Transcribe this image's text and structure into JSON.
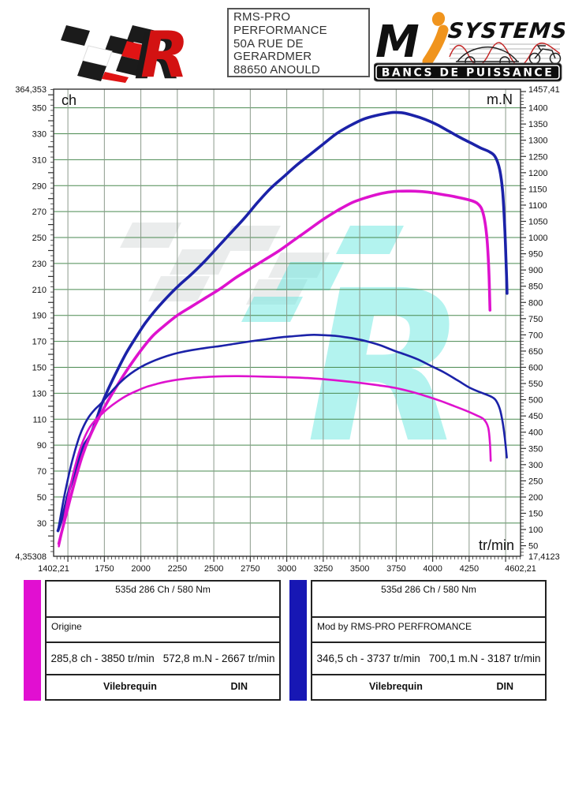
{
  "header": {
    "address_lines": [
      "RMS-PRO",
      "PERFORMANCE",
      "50A RUE DE",
      "GERARDMER",
      "88650 ANOULD"
    ],
    "brand": {
      "m": "M",
      "i": "i",
      "systems": "SYSTEMS",
      "banner": "BANCS DE PUISSANCE"
    }
  },
  "colors": {
    "curve_modified": "#1b22a8",
    "curve_origin": "#de12ce",
    "grid_horizontal": "#4a8a50",
    "grid_vertical": "#8b9a8b",
    "axis": "#333333",
    "legend_origin_bar": "#e10fd1",
    "legend_modified_bar": "#1717b4",
    "logo_red": "#d31212",
    "logo_orange": "#f0941d",
    "watermark_cyan": "#69e8e0",
    "watermark_gray": "#d2d6d6",
    "banner_bg": "#0d0d0d",
    "banner_text": "#ffffff"
  },
  "legends": {
    "origin": {
      "title": "535d 286 Ch / 580 Nm",
      "label": "Origine",
      "power_peak": "285,8 ch - 3850 tr/min",
      "torque_peak": "572,8 m.N - 2667 tr/min",
      "footer_left": "Vilebrequin",
      "footer_right": "DIN",
      "bar_color": "#e10fd1"
    },
    "modified": {
      "title": "535d 286 Ch / 580 Nm",
      "label": "Mod by RMS-PRO PERFROMANCE",
      "power_peak": "346,5 ch - 3737 tr/min",
      "torque_peak": "700,1 m.N - 3187 tr/min",
      "footer_left": "Vilebrequin",
      "footer_right": "DIN",
      "bar_color": "#1717b4"
    }
  },
  "chart_data": {
    "type": "line",
    "x_axis": {
      "label": "tr/min",
      "min": 1402.21,
      "max": 4602.21,
      "grid_min": 1500,
      "grid_max": 4500,
      "grid_step": 250,
      "minor_tick_step": 25,
      "major_tick_step": 250,
      "ticks": [
        {
          "v": 1402.21,
          "t": "1402,21"
        },
        {
          "v": 1750,
          "t": "1750"
        },
        {
          "v": 2000,
          "t": "2000"
        },
        {
          "v": 2250,
          "t": "2250"
        },
        {
          "v": 2500,
          "t": "2500"
        },
        {
          "v": 2750,
          "t": "2750"
        },
        {
          "v": 3000,
          "t": "3000"
        },
        {
          "v": 3250,
          "t": "3250"
        },
        {
          "v": 3500,
          "t": "3500"
        },
        {
          "v": 3750,
          "t": "3750"
        },
        {
          "v": 4000,
          "t": "4000"
        },
        {
          "v": 4250,
          "t": "4250"
        },
        {
          "v": 4602.21,
          "t": "4602,21"
        }
      ]
    },
    "left_axis": {
      "label": "ch",
      "min": 4.35308,
      "max": 364.353,
      "grid_min": 30,
      "grid_max": 350,
      "grid_step": 20,
      "minor_tick_step": 4,
      "major_tick_step": 20,
      "ticks": [
        {
          "v": 364.353,
          "t": "364,353"
        },
        {
          "v": 350,
          "t": "350"
        },
        {
          "v": 330,
          "t": "330"
        },
        {
          "v": 310,
          "t": "310"
        },
        {
          "v": 290,
          "t": "290"
        },
        {
          "v": 270,
          "t": "270"
        },
        {
          "v": 250,
          "t": "250"
        },
        {
          "v": 230,
          "t": "230"
        },
        {
          "v": 210,
          "t": "210"
        },
        {
          "v": 190,
          "t": "190"
        },
        {
          "v": 170,
          "t": "170"
        },
        {
          "v": 150,
          "t": "150"
        },
        {
          "v": 130,
          "t": "130"
        },
        {
          "v": 110,
          "t": "110"
        },
        {
          "v": 90,
          "t": "90"
        },
        {
          "v": 70,
          "t": "70"
        },
        {
          "v": 50,
          "t": "50"
        },
        {
          "v": 30,
          "t": "30"
        },
        {
          "v": 4.35308,
          "t": "4,35308"
        }
      ]
    },
    "right_axis": {
      "label": "m.N",
      "min": 17.4123,
      "max": 1457.41,
      "minor_tick_step": 10,
      "major_tick_step": 50,
      "ticks": [
        {
          "v": 1457.41,
          "t": "1457,41"
        },
        {
          "v": 1400,
          "t": "1400"
        },
        {
          "v": 1350,
          "t": "1350"
        },
        {
          "v": 1300,
          "t": "1300"
        },
        {
          "v": 1250,
          "t": "1250"
        },
        {
          "v": 1200,
          "t": "1200"
        },
        {
          "v": 1150,
          "t": "1150"
        },
        {
          "v": 1100,
          "t": "1100"
        },
        {
          "v": 1050,
          "t": "1050"
        },
        {
          "v": 1000,
          "t": "1000"
        },
        {
          "v": 950,
          "t": "950"
        },
        {
          "v": 900,
          "t": "900"
        },
        {
          "v": 850,
          "t": "850"
        },
        {
          "v": 800,
          "t": "800"
        },
        {
          "v": 750,
          "t": "750"
        },
        {
          "v": 700,
          "t": "700"
        },
        {
          "v": 650,
          "t": "650"
        },
        {
          "v": 600,
          "t": "600"
        },
        {
          "v": 550,
          "t": "550"
        },
        {
          "v": 500,
          "t": "500"
        },
        {
          "v": 450,
          "t": "450"
        },
        {
          "v": 400,
          "t": "400"
        },
        {
          "v": 350,
          "t": "350"
        },
        {
          "v": 300,
          "t": "300"
        },
        {
          "v": 250,
          "t": "250"
        },
        {
          "v": 200,
          "t": "200"
        },
        {
          "v": 150,
          "t": "150"
        },
        {
          "v": 100,
          "t": "100"
        },
        {
          "v": 50,
          "t": "50"
        },
        {
          "v": 17.4123,
          "t": "17,4123"
        }
      ]
    },
    "series": [
      {
        "name": "power-modified",
        "axis": "left",
        "unit": "ch",
        "color": "#1b22a8",
        "width": 3.6,
        "points": [
          [
            1432,
            24
          ],
          [
            1450,
            30
          ],
          [
            1475,
            40
          ],
          [
            1500,
            52
          ],
          [
            1530,
            63
          ],
          [
            1560,
            74
          ],
          [
            1590,
            85
          ],
          [
            1615,
            91
          ],
          [
            1650,
            97
          ],
          [
            1690,
            108
          ],
          [
            1730,
            121
          ],
          [
            1780,
            134
          ],
          [
            1840,
            148
          ],
          [
            1900,
            161
          ],
          [
            1960,
            172
          ],
          [
            2030,
            184
          ],
          [
            2100,
            194
          ],
          [
            2180,
            204
          ],
          [
            2260,
            213
          ],
          [
            2350,
            222
          ],
          [
            2440,
            232
          ],
          [
            2530,
            243
          ],
          [
            2620,
            254
          ],
          [
            2710,
            265
          ],
          [
            2800,
            277
          ],
          [
            2890,
            288
          ],
          [
            2980,
            297
          ],
          [
            3070,
            306
          ],
          [
            3160,
            314
          ],
          [
            3250,
            322
          ],
          [
            3340,
            330
          ],
          [
            3430,
            336
          ],
          [
            3520,
            341
          ],
          [
            3610,
            344
          ],
          [
            3700,
            346
          ],
          [
            3737,
            346.5
          ],
          [
            3800,
            346
          ],
          [
            3870,
            344
          ],
          [
            3950,
            341
          ],
          [
            4030,
            337
          ],
          [
            4110,
            332
          ],
          [
            4190,
            327
          ],
          [
            4260,
            323
          ],
          [
            4330,
            319
          ],
          [
            4390,
            316
          ],
          [
            4430,
            312
          ],
          [
            4460,
            302
          ],
          [
            4480,
            285
          ],
          [
            4495,
            255
          ],
          [
            4505,
            225
          ],
          [
            4510,
            207
          ]
        ]
      },
      {
        "name": "power-origin",
        "axis": "left",
        "unit": "ch",
        "color": "#de12ce",
        "width": 3.6,
        "points": [
          [
            1438,
            14
          ],
          [
            1455,
            22
          ],
          [
            1480,
            33
          ],
          [
            1510,
            46
          ],
          [
            1540,
            59
          ],
          [
            1570,
            71
          ],
          [
            1600,
            82
          ],
          [
            1640,
            94
          ],
          [
            1680,
            104
          ],
          [
            1730,
            115
          ],
          [
            1790,
            127
          ],
          [
            1860,
            140
          ],
          [
            1930,
            152
          ],
          [
            2000,
            163
          ],
          [
            2080,
            174
          ],
          [
            2160,
            182
          ],
          [
            2250,
            190
          ],
          [
            2350,
            197
          ],
          [
            2450,
            204
          ],
          [
            2550,
            211
          ],
          [
            2650,
            219
          ],
          [
            2750,
            226
          ],
          [
            2850,
            233
          ],
          [
            2950,
            240
          ],
          [
            3050,
            248
          ],
          [
            3150,
            256
          ],
          [
            3250,
            264
          ],
          [
            3350,
            271
          ],
          [
            3450,
            277
          ],
          [
            3550,
            281
          ],
          [
            3650,
            284
          ],
          [
            3737,
            285.5
          ],
          [
            3850,
            285.8
          ],
          [
            3950,
            285.2
          ],
          [
            4050,
            283.5
          ],
          [
            4150,
            281.5
          ],
          [
            4250,
            279
          ],
          [
            4310,
            276
          ],
          [
            4345,
            269
          ],
          [
            4370,
            252
          ],
          [
            4385,
            225
          ],
          [
            4393,
            194
          ]
        ]
      },
      {
        "name": "torque-modified",
        "axis": "right",
        "unit": "m.N",
        "color": "#1b22a8",
        "width": 2.6,
        "points": [
          [
            1432,
            96
          ],
          [
            1450,
            140
          ],
          [
            1470,
            190
          ],
          [
            1495,
            245
          ],
          [
            1520,
            295
          ],
          [
            1550,
            345
          ],
          [
            1580,
            388
          ],
          [
            1610,
            420
          ],
          [
            1645,
            448
          ],
          [
            1685,
            470
          ],
          [
            1730,
            490
          ],
          [
            1780,
            516
          ],
          [
            1840,
            545
          ],
          [
            1900,
            570
          ],
          [
            1960,
            590
          ],
          [
            2030,
            608
          ],
          [
            2100,
            622
          ],
          [
            2180,
            635
          ],
          [
            2260,
            645
          ],
          [
            2350,
            653
          ],
          [
            2450,
            660
          ],
          [
            2550,
            666
          ],
          [
            2650,
            673
          ],
          [
            2750,
            680
          ],
          [
            2850,
            686
          ],
          [
            2950,
            692
          ],
          [
            3050,
            696
          ],
          [
            3130,
            699
          ],
          [
            3187,
            700.1
          ],
          [
            3260,
            699
          ],
          [
            3330,
            697
          ],
          [
            3400,
            693
          ],
          [
            3470,
            688
          ],
          [
            3550,
            680
          ],
          [
            3640,
            668
          ],
          [
            3737,
            651
          ],
          [
            3820,
            638
          ],
          [
            3900,
            624
          ],
          [
            3990,
            604
          ],
          [
            4080,
            584
          ],
          [
            4170,
            560
          ],
          [
            4250,
            538
          ],
          [
            4320,
            524
          ],
          [
            4390,
            512
          ],
          [
            4430,
            500
          ],
          [
            4460,
            472
          ],
          [
            4480,
            430
          ],
          [
            4495,
            380
          ],
          [
            4508,
            322
          ]
        ]
      },
      {
        "name": "torque-origin",
        "axis": "right",
        "unit": "m.N",
        "color": "#de12ce",
        "width": 2.6,
        "points": [
          [
            1438,
            48
          ],
          [
            1455,
            85
          ],
          [
            1475,
            135
          ],
          [
            1500,
            195
          ],
          [
            1525,
            250
          ],
          [
            1555,
            305
          ],
          [
            1585,
            350
          ],
          [
            1615,
            385
          ],
          [
            1650,
            415
          ],
          [
            1690,
            438
          ],
          [
            1730,
            455
          ],
          [
            1780,
            475
          ],
          [
            1840,
            495
          ],
          [
            1900,
            512
          ],
          [
            1970,
            527
          ],
          [
            2040,
            540
          ],
          [
            2120,
            550
          ],
          [
            2200,
            558
          ],
          [
            2290,
            564
          ],
          [
            2380,
            568
          ],
          [
            2480,
            571
          ],
          [
            2580,
            572.5
          ],
          [
            2667,
            572.8
          ],
          [
            2780,
            572
          ],
          [
            2900,
            570.5
          ],
          [
            3020,
            569
          ],
          [
            3140,
            567
          ],
          [
            3260,
            563
          ],
          [
            3380,
            558
          ],
          [
            3500,
            552
          ],
          [
            3620,
            545
          ],
          [
            3737,
            537
          ],
          [
            3850,
            525
          ],
          [
            3950,
            512
          ],
          [
            4050,
            497
          ],
          [
            4150,
            480
          ],
          [
            4230,
            466
          ],
          [
            4300,
            452
          ],
          [
            4350,
            440
          ],
          [
            4380,
            415
          ],
          [
            4392,
            370
          ],
          [
            4398,
            312
          ]
        ]
      }
    ]
  }
}
